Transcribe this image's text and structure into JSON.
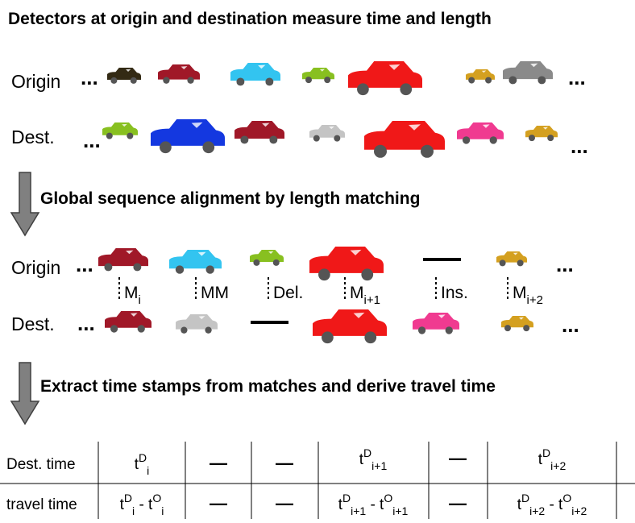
{
  "title": "Detectors at origin and destination measure time and length",
  "stage1": {
    "origin_label": "Origin",
    "dest_label": "Dest.",
    "origin_more_before": "...",
    "origin_more_after": "...",
    "dest_more_before": "...",
    "dest_more_after": "..."
  },
  "step1": "Global sequence alignment by length matching",
  "stage2": {
    "origin_label": "Origin",
    "dest_label": "Dest.",
    "origin_more_before": "...",
    "origin_more_after": "...",
    "dest_more_before": "...",
    "dest_more_after": "...",
    "operations": [
      [
        {
          "text": "M"
        },
        {
          "sub": "i"
        }
      ],
      [
        {
          "text": "MM"
        }
      ],
      [
        {
          "text": "Del."
        }
      ],
      [
        {
          "text": "M"
        },
        {
          "sub": "i+1"
        }
      ],
      [
        {
          "text": "Ins."
        }
      ],
      [
        {
          "text": "M"
        },
        {
          "sub": "i+2"
        }
      ]
    ]
  },
  "step2": "Extract time stamps from matches and derive travel time",
  "table": {
    "rows": [
      {
        "label": "Dest. time",
        "cells": [
          [
            {
              "text": "t"
            },
            {
              "sup": "D"
            },
            {
              "sub": "i"
            }
          ],
          [
            {
              "text": "—"
            }
          ],
          [
            {
              "text": "—"
            }
          ],
          [
            {
              "text": "t"
            },
            {
              "sup": "D"
            },
            {
              "sub": "i+1"
            }
          ],
          [
            {
              "text": "—"
            }
          ],
          [
            {
              "text": "t"
            },
            {
              "sup": "D"
            },
            {
              "sub": "i+2"
            }
          ]
        ]
      },
      {
        "label": "travel time",
        "cells": [
          [
            {
              "text": "t"
            },
            {
              "sup": "D"
            },
            {
              "sub": "i"
            },
            {
              "text": " - t"
            },
            {
              "sup": "O"
            },
            {
              "sub": "i"
            }
          ],
          [
            {
              "text": "—"
            }
          ],
          [
            {
              "text": "—"
            }
          ],
          [
            {
              "text": "t"
            },
            {
              "sup": "D"
            },
            {
              "sub": "i+1"
            },
            {
              "text": " - t"
            },
            {
              "sup": "O"
            },
            {
              "sub": "i+1"
            }
          ],
          [
            {
              "text": "—"
            }
          ],
          [
            {
              "text": "t"
            },
            {
              "sup": "D"
            },
            {
              "sub": "i+2"
            },
            {
              "text": " - t"
            },
            {
              "sup": "O"
            },
            {
              "sub": "i+2"
            }
          ]
        ]
      }
    ]
  }
}
